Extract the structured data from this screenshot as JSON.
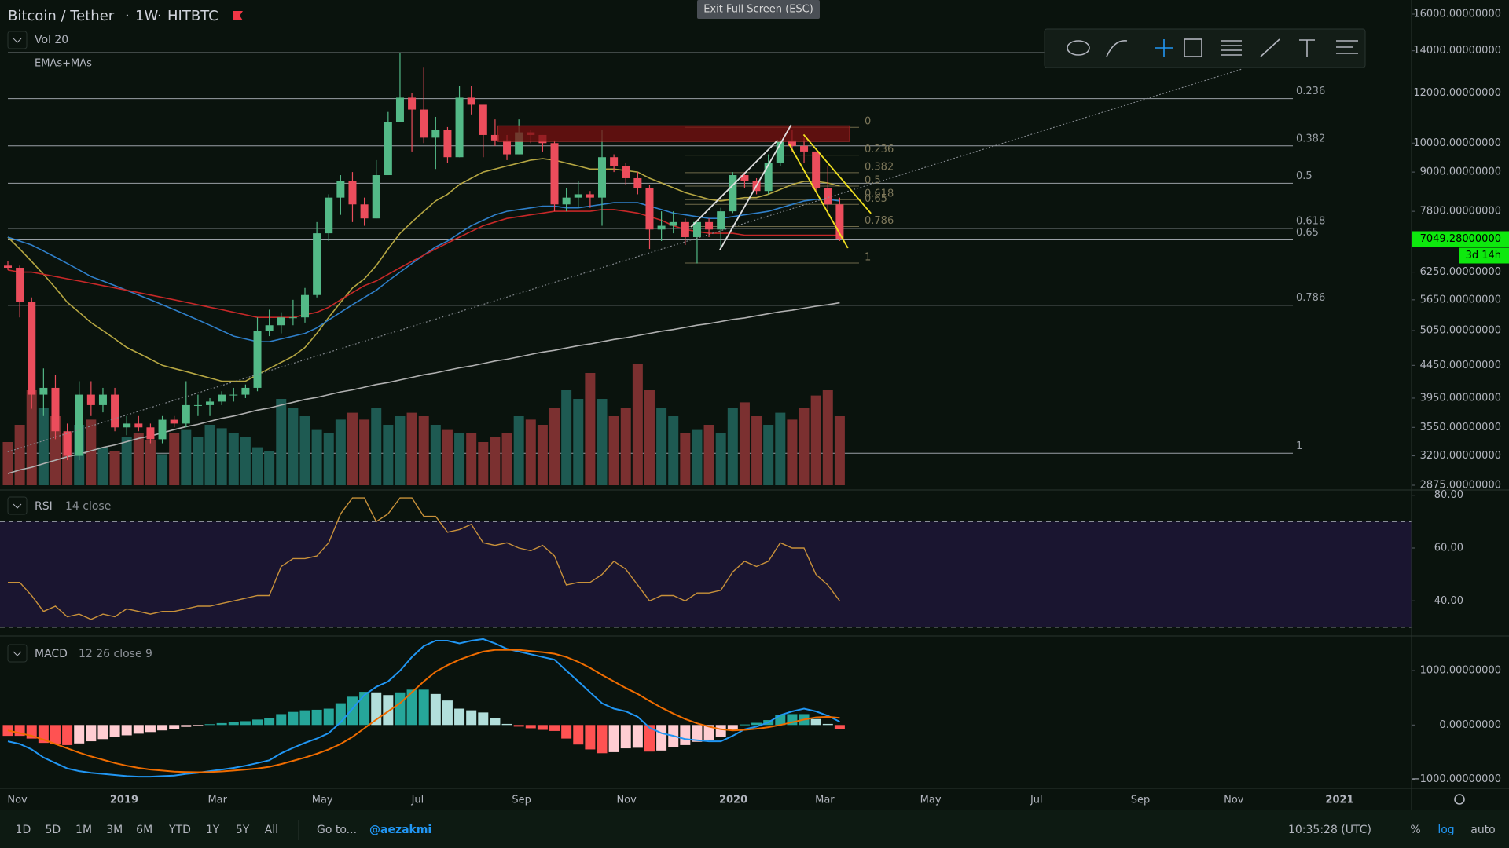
{
  "header": {
    "symbol": "Bitcoin / Tether",
    "interval": "1W",
    "exchange": "HITBTC",
    "volume_study": "Vol 20",
    "ma_study": "EMAs+MAs",
    "exit_button": "Exit Full Screen (ESC)"
  },
  "chart_data": {
    "type": "candlestick",
    "log": true,
    "up_color": "#53b987",
    "down_color": "#eb4d5c",
    "ylim": [
      2875,
      16000
    ],
    "yticks": [
      {
        "value": 16000,
        "label": "16000.00000000"
      },
      {
        "value": 14000,
        "label": "14000.00000000"
      },
      {
        "value": 12000,
        "label": "12000.00000000"
      },
      {
        "value": 10000,
        "label": "10000.00000000"
      },
      {
        "value": 9000,
        "label": "9000.00000000"
      },
      {
        "value": 7800,
        "label": "7800.00000000"
      },
      {
        "value": 6250,
        "label": "6250.00000000"
      },
      {
        "value": 5650,
        "label": "5650.00000000"
      },
      {
        "value": 5050,
        "label": "5050.00000000"
      },
      {
        "value": 4450,
        "label": "4450.00000000"
      },
      {
        "value": 3950,
        "label": "3950.00000000"
      },
      {
        "value": 3550,
        "label": "3550.00000000"
      },
      {
        "value": 3200,
        "label": "3200.00000000"
      },
      {
        "value": 2875,
        "label": "2875.00000000"
      }
    ],
    "last_price": {
      "value": 7049.28,
      "label": "7049.28000000",
      "countdown": "3d 14h",
      "color": "#0ee80e"
    },
    "time_labels": [
      "Nov",
      "2019",
      "Mar",
      "May",
      "Jul",
      "Sep",
      "Nov",
      "2020",
      "Mar",
      "May",
      "Jul",
      "Sep",
      "Nov",
      "2021"
    ],
    "open": [
      6400,
      6350,
      5600,
      4000,
      4100,
      3500,
      3200,
      4000,
      3850,
      4000,
      3550,
      3600,
      3550,
      3400,
      3650,
      3600,
      3850,
      3850,
      3900,
      4000,
      4000,
      4100,
      5050,
      5150,
      5300,
      5300,
      5750,
      7200,
      8200,
      8700,
      8000,
      7600,
      8900,
      10800,
      11800,
      11300,
      10200,
      10500,
      9500,
      11800,
      11500,
      10300,
      10100,
      9600,
      10400,
      10300,
      10000,
      8000,
      8200,
      8300,
      8200,
      9500,
      9200,
      8800,
      8500,
      7300,
      7400,
      7500,
      7100,
      7500,
      7300,
      7800,
      8900,
      8700,
      8400,
      9300,
      10100,
      9900,
      9700,
      8500,
      8000
    ],
    "high": [
      6500,
      6400,
      5700,
      4400,
      4300,
      3600,
      4200,
      4200,
      4100,
      4100,
      3700,
      3700,
      3600,
      3700,
      3700,
      4200,
      4000,
      3950,
      4050,
      4100,
      4150,
      5300,
      5450,
      5400,
      5650,
      5900,
      7500,
      8300,
      8900,
      9000,
      8200,
      9400,
      11200,
      13900,
      12000,
      13200,
      11000,
      10600,
      12300,
      12300,
      11500,
      10900,
      10300,
      10900,
      10500,
      10300,
      10100,
      8500,
      8700,
      8400,
      10500,
      9600,
      9300,
      9000,
      8600,
      7800,
      7800,
      7600,
      7500,
      7600,
      7900,
      9000,
      9000,
      8800,
      9600,
      10200,
      10500,
      10200,
      9700,
      9200,
      8200
    ],
    "low": [
      6300,
      5300,
      3800,
      3700,
      3400,
      3150,
      3150,
      3700,
      3750,
      3500,
      3450,
      3500,
      3350,
      3350,
      3550,
      3550,
      3700,
      3700,
      3850,
      3900,
      3950,
      4050,
      4950,
      5000,
      5150,
      5200,
      5700,
      7000,
      7700,
      7500,
      7400,
      7600,
      8900,
      10800,
      9700,
      10000,
      9100,
      9300,
      9500,
      11100,
      9500,
      9900,
      9400,
      9600,
      10000,
      9700,
      7800,
      7800,
      7900,
      7900,
      7400,
      9000,
      8600,
      8300,
      6800,
      7000,
      7200,
      6900,
      6450,
      7100,
      6850,
      7750,
      8500,
      8300,
      8300,
      9200,
      9700,
      9300,
      8400,
      7700,
      7000
    ],
    "close": [
      6350,
      5600,
      4000,
      4100,
      3500,
      3200,
      4000,
      3850,
      4000,
      3550,
      3600,
      3550,
      3400,
      3650,
      3600,
      3850,
      3850,
      3900,
      4000,
      4000,
      4100,
      5050,
      5150,
      5300,
      5300,
      5750,
      7200,
      8200,
      8700,
      8000,
      7600,
      8900,
      10800,
      11800,
      11300,
      10200,
      10500,
      9500,
      11800,
      11500,
      10300,
      10100,
      9600,
      10400,
      10300,
      10000,
      8000,
      8200,
      8300,
      8200,
      9500,
      9200,
      8800,
      8500,
      7300,
      7400,
      7500,
      7100,
      7500,
      7300,
      7800,
      8900,
      8700,
      8400,
      9300,
      10100,
      9900,
      9700,
      8500,
      8000,
      7049.28
    ],
    "volume": [
      25,
      35,
      55,
      45,
      40,
      30,
      35,
      38,
      22,
      20,
      28,
      30,
      26,
      18,
      30,
      32,
      28,
      35,
      33,
      30,
      28,
      22,
      20,
      50,
      45,
      40,
      32,
      30,
      38,
      42,
      38,
      45,
      35,
      40,
      42,
      40,
      35,
      32,
      30,
      30,
      25,
      28,
      30,
      40,
      38,
      35,
      45,
      55,
      50,
      65,
      50,
      40,
      45,
      70,
      55,
      45,
      40,
      30,
      32,
      35,
      30,
      45,
      48,
      40,
      35,
      42,
      38,
      45,
      52,
      55,
      40
    ],
    "volume_colors": [
      "#1e5a52",
      "#7b3030"
    ],
    "ma": [
      {
        "color": "#b5a642",
        "values": [
          7100,
          6800,
          6500,
          6200,
          5900,
          5600,
          5400,
          5200,
          5050,
          4900,
          4750,
          4650,
          4550,
          4450,
          4400,
          4350,
          4300,
          4250,
          4200,
          4200,
          4200,
          4300,
          4400,
          4500,
          4600,
          4750,
          5000,
          5300,
          5600,
          5900,
          6100,
          6400,
          6800,
          7200,
          7500,
          7800,
          8100,
          8300,
          8600,
          8800,
          9000,
          9100,
          9200,
          9300,
          9400,
          9450,
          9400,
          9300,
          9200,
          9100,
          9100,
          9100,
          9050,
          9000,
          8800,
          8650,
          8500,
          8350,
          8250,
          8150,
          8100,
          8150,
          8200,
          8200,
          8300,
          8450,
          8600,
          8700,
          8700,
          8650,
          8550
        ]
      },
      {
        "color": "#2f7fc9",
        "values": [
          7100,
          7000,
          6900,
          6750,
          6600,
          6450,
          6300,
          6150,
          6050,
          5950,
          5850,
          5750,
          5650,
          5550,
          5450,
          5350,
          5250,
          5150,
          5050,
          4950,
          4900,
          4850,
          4850,
          4900,
          4950,
          5000,
          5100,
          5250,
          5400,
          5550,
          5700,
          5850,
          6050,
          6250,
          6450,
          6650,
          6850,
          7000,
          7200,
          7400,
          7550,
          7700,
          7800,
          7850,
          7900,
          7950,
          7950,
          7900,
          7900,
          7950,
          8000,
          8050,
          8050,
          8050,
          7950,
          7850,
          7750,
          7700,
          7650,
          7600,
          7600,
          7650,
          7700,
          7750,
          7800,
          7900,
          8000,
          8100,
          8150,
          8150,
          8100
        ]
      },
      {
        "color": "#c62828",
        "values": [
          6300,
          6250,
          6250,
          6200,
          6150,
          6100,
          6050,
          6000,
          5950,
          5900,
          5850,
          5800,
          5750,
          5700,
          5650,
          5600,
          5550,
          5500,
          5450,
          5400,
          5350,
          5300,
          5300,
          5300,
          5300,
          5350,
          5400,
          5500,
          5650,
          5800,
          5950,
          6050,
          6200,
          6350,
          6500,
          6650,
          6800,
          6950,
          7100,
          7250,
          7400,
          7500,
          7600,
          7650,
          7700,
          7750,
          7800,
          7800,
          7800,
          7800,
          7850,
          7850,
          7800,
          7750,
          7650,
          7550,
          7400,
          7300,
          7250,
          7200,
          7200,
          7200,
          7150,
          7150,
          7150,
          7150,
          7150,
          7150,
          7150,
          7150,
          7150
        ]
      },
      {
        "color": "#b0b0b0",
        "values": [
          3000,
          3040,
          3070,
          3110,
          3150,
          3190,
          3220,
          3260,
          3300,
          3330,
          3370,
          3410,
          3440,
          3480,
          3520,
          3560,
          3590,
          3630,
          3670,
          3700,
          3740,
          3780,
          3810,
          3850,
          3890,
          3930,
          3960,
          4000,
          4040,
          4070,
          4110,
          4150,
          4180,
          4220,
          4260,
          4300,
          4330,
          4370,
          4410,
          4440,
          4480,
          4520,
          4550,
          4590,
          4630,
          4670,
          4700,
          4740,
          4780,
          4810,
          4850,
          4890,
          4920,
          4960,
          5000,
          5040,
          5070,
          5110,
          5150,
          5180,
          5220,
          5260,
          5290,
          5330,
          5370,
          5410,
          5440,
          5480,
          5520,
          5550,
          5590
        ]
      }
    ],
    "fib_levels": [
      {
        "label": null,
        "price": 13900
      },
      {
        "label": "0.236",
        "price": 11760
      },
      {
        "label": "0.382",
        "price": 9900
      },
      {
        "label": "0.5",
        "price": 8640
      },
      {
        "label": "0.618",
        "price": 7330
      },
      {
        "label": "0.65",
        "price": 7030
      },
      {
        "label": "0.786",
        "price": 5540
      },
      {
        "label": "1",
        "price": 3230
      }
    ],
    "fib_levels_small": [
      {
        "label": "0",
        "price": 10590
      },
      {
        "label": "0.236",
        "price": 9570
      },
      {
        "label": "0.382",
        "price": 8980
      },
      {
        "label": "0.5",
        "price": 8550
      },
      {
        "label": "0.618",
        "price": 8140
      },
      {
        "label": "0.65",
        "price": 8000
      },
      {
        "label": "0.786",
        "price": 7380
      },
      {
        "label": "1",
        "price": 6460
      }
    ],
    "rsi": {
      "title": "RSI",
      "params": "14 close",
      "color": "#c8913a",
      "band": [
        30,
        70
      ],
      "ylim": [
        27.3,
        81.1
      ],
      "yticks": [
        {
          "value": 80,
          "label": "80.00"
        },
        {
          "value": 60,
          "label": "60.00"
        },
        {
          "value": 40,
          "label": "40.00"
        }
      ],
      "values": [
        47,
        47,
        42,
        36,
        38,
        34,
        35,
        33,
        35,
        34,
        37,
        36,
        35,
        36,
        36,
        37,
        38,
        38,
        39,
        40,
        41,
        42,
        42,
        53,
        56,
        56,
        57,
        62,
        73,
        79,
        79,
        70,
        73,
        79,
        79,
        72,
        72,
        66,
        67,
        69,
        62,
        61,
        62,
        60,
        59,
        61,
        57,
        46,
        47,
        47,
        50,
        55,
        52,
        46,
        40,
        42,
        42,
        40,
        43,
        43,
        44,
        51,
        55,
        53,
        55,
        62,
        60,
        60,
        50,
        46,
        40
      ]
    },
    "macd": {
      "title": "MACD",
      "params": "12 26 close 9",
      "macd_color": "#2196f3",
      "signal_color": "#ef6c00",
      "hist_colors": [
        "#26a69a",
        "#b2dfdb",
        "#ff5252",
        "#ffcdd2"
      ],
      "ylim": [
        -1137,
        1608
      ],
      "yticks": [
        {
          "value": 1000,
          "label": "1000.00000000"
        },
        {
          "value": 0,
          "label": "0.00000000"
        },
        {
          "value": -1000,
          "label": "−1000.00000000"
        }
      ],
      "macd": [
        -300,
        -350,
        -450,
        -600,
        -700,
        -800,
        -850,
        -880,
        -900,
        -920,
        -940,
        -950,
        -950,
        -940,
        -930,
        -900,
        -880,
        -850,
        -820,
        -790,
        -750,
        -700,
        -650,
        -520,
        -420,
        -330,
        -250,
        -150,
        50,
        300,
        550,
        700,
        800,
        1000,
        1250,
        1450,
        1550,
        1550,
        1500,
        1550,
        1580,
        1500,
        1400,
        1350,
        1300,
        1250,
        1200,
        1000,
        800,
        600,
        400,
        300,
        250,
        150,
        -50,
        -150,
        -200,
        -260,
        -280,
        -300,
        -300,
        -200,
        -80,
        -30,
        50,
        180,
        250,
        300,
        250,
        170,
        60
      ],
      "signal": [
        -100,
        -150,
        -200,
        -270,
        -350,
        -430,
        -510,
        -580,
        -640,
        -700,
        -750,
        -790,
        -820,
        -840,
        -860,
        -865,
        -870,
        -865,
        -855,
        -840,
        -820,
        -800,
        -770,
        -720,
        -660,
        -600,
        -530,
        -450,
        -350,
        -220,
        -60,
        100,
        250,
        400,
        600,
        800,
        980,
        1100,
        1200,
        1280,
        1350,
        1380,
        1380,
        1380,
        1360,
        1340,
        1310,
        1250,
        1160,
        1050,
        920,
        800,
        680,
        570,
        440,
        320,
        210,
        110,
        30,
        -30,
        -80,
        -100,
        -90,
        -70,
        -40,
        0,
        50,
        100,
        140,
        150,
        130
      ],
      "histogram": [
        -200,
        -200,
        -250,
        -330,
        -350,
        -370,
        -340,
        -300,
        -260,
        -220,
        -190,
        -160,
        -130,
        -100,
        -70,
        -35,
        -10,
        15,
        35,
        50,
        70,
        100,
        120,
        200,
        240,
        270,
        280,
        300,
        400,
        520,
        610,
        600,
        550,
        600,
        650,
        650,
        570,
        450,
        300,
        270,
        230,
        120,
        20,
        -30,
        -60,
        -90,
        -110,
        -250,
        -360,
        -450,
        -520,
        -500,
        -430,
        -420,
        -490,
        -470,
        -410,
        -370,
        -310,
        -270,
        -220,
        -100,
        10,
        40,
        90,
        180,
        200,
        200,
        110,
        20,
        -70
      ]
    }
  },
  "bottom_bar": {
    "ranges": [
      "1D",
      "5D",
      "1M",
      "3M",
      "6M",
      "YTD",
      "1Y",
      "5Y",
      "All"
    ],
    "goto": "Go to...",
    "user": "@aezakmi",
    "clock": "10:35:28 (UTC)",
    "percent": "%",
    "log": "log",
    "auto": "auto"
  }
}
